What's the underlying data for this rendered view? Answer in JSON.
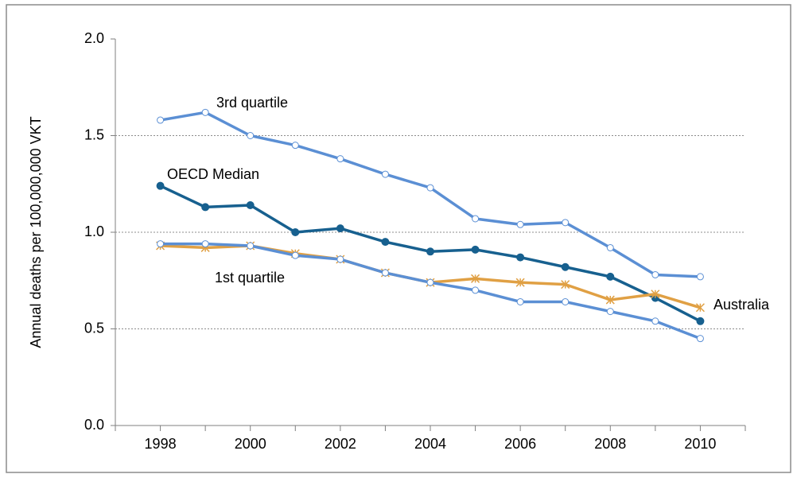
{
  "chart_data": {
    "type": "line",
    "y_label": "Annual deaths per 100,000,000  VKT",
    "categories": [
      "1998",
      null,
      "2000",
      null,
      "2002",
      null,
      "2004",
      null,
      "2006",
      null,
      "2008",
      null,
      "2010"
    ],
    "ylim": [
      0,
      2
    ],
    "yticks": [
      {
        "value": 0,
        "label": "0.0"
      },
      {
        "value": 0.5,
        "label": "0.5"
      },
      {
        "value": 1,
        "label": "1.0"
      },
      {
        "value": 1.5,
        "label": "1.5"
      },
      {
        "value": 2,
        "label": "2.0"
      }
    ],
    "grid": true,
    "series": [
      {
        "name": "3rd quartile",
        "color": "#5b8fd4",
        "marker": "open-circle",
        "values": [
          1.58,
          1.62,
          1.5,
          1.45,
          1.38,
          1.3,
          1.23,
          1.07,
          1.04,
          1.05,
          0.92,
          0.78,
          0.77
        ]
      },
      {
        "name": "OECD Median",
        "color": "#17608f",
        "marker": "circle",
        "values": [
          1.24,
          1.13,
          1.14,
          1.0,
          1.02,
          0.95,
          0.9,
          0.91,
          0.87,
          0.82,
          0.77,
          0.66,
          0.54
        ]
      },
      {
        "name": "Australia",
        "color": "#e0a044",
        "marker": "asterisk",
        "values": [
          0.93,
          0.92,
          0.93,
          0.89,
          0.86,
          0.79,
          0.74,
          0.76,
          0.74,
          0.73,
          0.65,
          0.68,
          0.61
        ]
      },
      {
        "name": "1st quartile",
        "color": "#5b8fd4",
        "marker": "open-circle",
        "values": [
          0.94,
          0.94,
          0.93,
          0.88,
          0.86,
          0.79,
          0.74,
          0.7,
          0.64,
          0.64,
          0.59,
          0.54,
          0.45
        ]
      }
    ]
  }
}
